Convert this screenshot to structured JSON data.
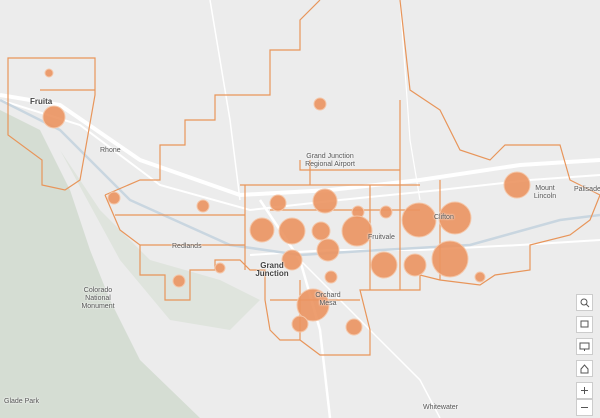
{
  "map": {
    "places": [
      {
        "label": "Fruita"
      },
      {
        "label": "Rhone"
      },
      {
        "label": "Grand Junction Regional Airport"
      },
      {
        "label": "Redlands"
      },
      {
        "label": "Grand Junction"
      },
      {
        "label": "Colorado National Monument"
      },
      {
        "label": "Orchard Mesa"
      },
      {
        "label": "Fruitvale"
      },
      {
        "label": "Clifton"
      },
      {
        "label": "Mount Lincoln"
      },
      {
        "label": "Palisade"
      },
      {
        "label": "Glade Park"
      },
      {
        "label": "Whitewater"
      }
    ]
  }
}
